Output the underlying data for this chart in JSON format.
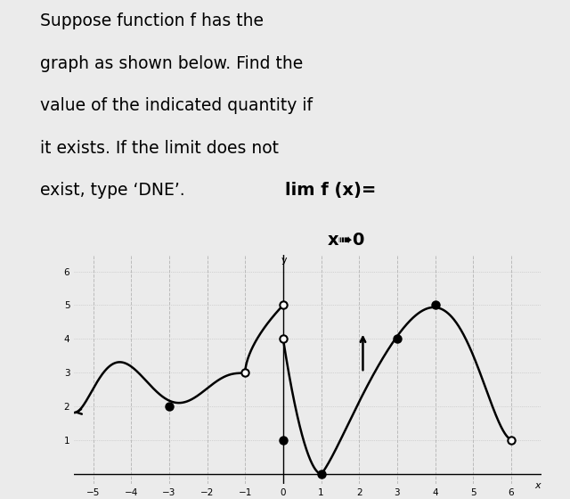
{
  "background_color": "#ebebeb",
  "text_color": "#000000",
  "title_lines": [
    "Suppose function f has the",
    "graph as shown below. Find the",
    "value of the indicated quantity if",
    "it exists. If the limit does not",
    "exist, type ‘DNE’."
  ],
  "lim_text": "lim f (x)=",
  "lim_sub": "x➠0",
  "graph_xlim": [
    -5.5,
    6.8
  ],
  "graph_ylim": [
    -0.3,
    6.5
  ],
  "xticks": [
    -5,
    -4,
    -3,
    -2,
    -1,
    0,
    1,
    2,
    3,
    4,
    5,
    6
  ],
  "yticks": [
    1,
    2,
    3,
    4,
    5,
    6
  ],
  "grid_color": "#bbbbbb",
  "curve_color": "#000000",
  "open_dot_color": "#ffffff",
  "filled_dot_color": "#000000",
  "dot_size": 6,
  "lw": 1.8
}
